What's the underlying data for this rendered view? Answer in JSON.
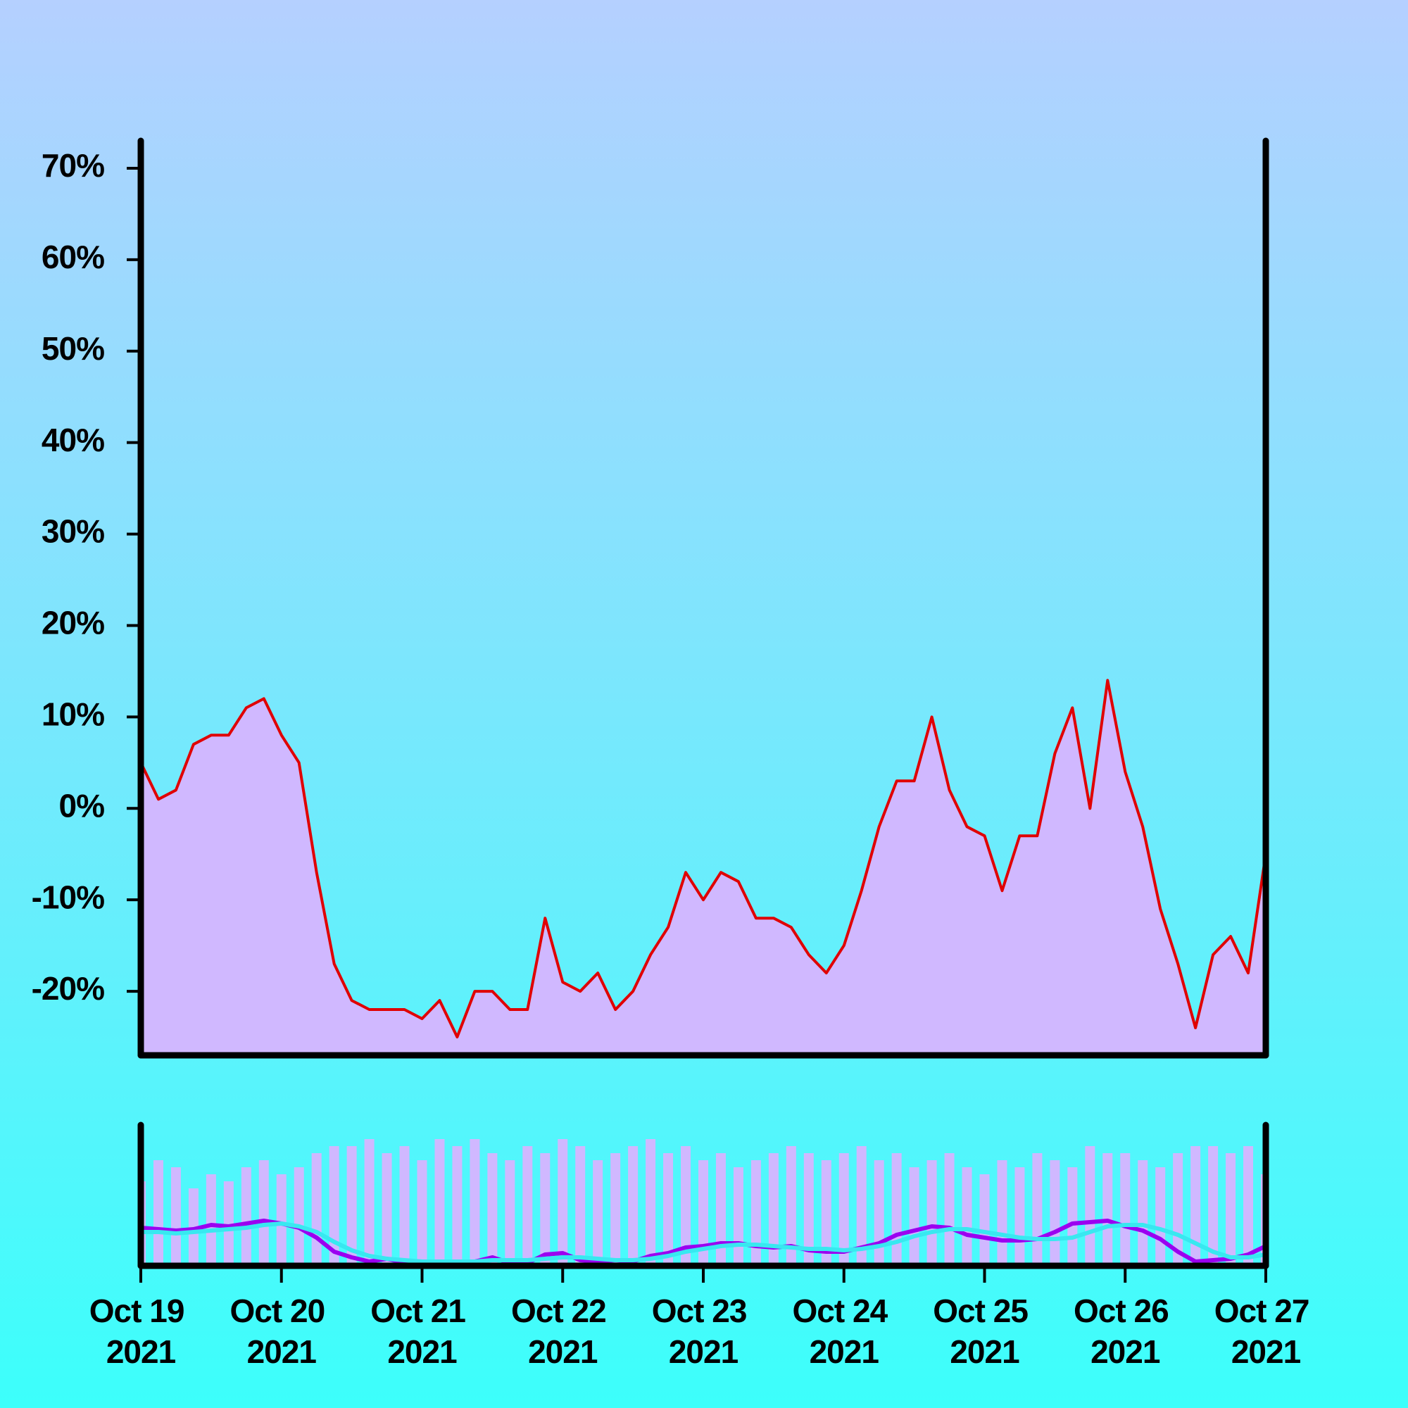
{
  "chart_data": [
    {
      "type": "area",
      "x": [
        0,
        0.125,
        0.25,
        0.375,
        0.5,
        0.625,
        0.75,
        0.875,
        1,
        1.125,
        1.25,
        1.375,
        1.5,
        1.625,
        1.75,
        1.875,
        2,
        2.125,
        2.25,
        2.375,
        2.5,
        2.625,
        2.75,
        2.875,
        3,
        3.125,
        3.25,
        3.375,
        3.5,
        3.625,
        3.75,
        3.875,
        4,
        4.125,
        4.25,
        4.375,
        4.5,
        4.625,
        4.75,
        4.875,
        5,
        5.125,
        5.25,
        5.375,
        5.5,
        5.625,
        5.75,
        5.875,
        6,
        6.125,
        6.25,
        6.375,
        6.5,
        6.625,
        6.75,
        6.875,
        7,
        7.125,
        7.25,
        7.375,
        7.5,
        7.625,
        7.75,
        7.875,
        8
      ],
      "xlim": [
        0,
        8
      ],
      "ylim": [
        -27,
        73
      ],
      "yticks": [
        {
          "value": -20,
          "label": "-20%"
        },
        {
          "value": -10,
          "label": "-10%"
        },
        {
          "value": 0,
          "label": "0%"
        },
        {
          "value": 10,
          "label": "10%"
        },
        {
          "value": 20,
          "label": "20%"
        },
        {
          "value": 30,
          "label": "30%"
        },
        {
          "value": 40,
          "label": "40%"
        },
        {
          "value": 50,
          "label": "50%"
        },
        {
          "value": 60,
          "label": "60%"
        },
        {
          "value": 70,
          "label": "70%"
        }
      ],
      "series": [
        {
          "color": "#e00000",
          "fill": "#d0b8ff",
          "values": [
            5,
            1,
            2,
            7,
            8,
            8,
            11,
            12,
            8,
            5,
            -7,
            -17,
            -21,
            -22,
            -22,
            -22,
            -23,
            -21,
            -25,
            -20,
            -20,
            -22,
            -22,
            -12,
            -19,
            -20,
            -18,
            -22,
            -20,
            -16,
            -13,
            -7,
            -10,
            -7,
            -8,
            -12,
            -12,
            -13,
            -16,
            -18,
            -15,
            -9,
            -2,
            3,
            3,
            10,
            2,
            -2,
            -3,
            -9,
            -3,
            -3,
            6,
            11,
            0,
            14,
            4,
            -2,
            -11,
            -17,
            -24,
            -16,
            -14,
            -18,
            -5
          ]
        }
      ]
    },
    {
      "type": "bar",
      "x": [
        0,
        0.125,
        0.25,
        0.375,
        0.5,
        0.625,
        0.75,
        0.875,
        1,
        1.125,
        1.25,
        1.375,
        1.5,
        1.625,
        1.75,
        1.875,
        2,
        2.125,
        2.25,
        2.375,
        2.5,
        2.625,
        2.75,
        2.875,
        3,
        3.125,
        3.25,
        3.375,
        3.5,
        3.625,
        3.75,
        3.875,
        4,
        4.125,
        4.25,
        4.375,
        4.5,
        4.625,
        4.75,
        4.875,
        5,
        5.125,
        5.25,
        5.375,
        5.5,
        5.625,
        5.75,
        5.875,
        6,
        6.125,
        6.25,
        6.375,
        6.5,
        6.625,
        6.75,
        6.875,
        7,
        7.125,
        7.25,
        7.375,
        7.5,
        7.625,
        7.75,
        7.875,
        8
      ],
      "xlim": [
        0,
        8
      ],
      "xticks": [
        {
          "value": 0,
          "label": "Oct 19 2021"
        },
        {
          "value": 1,
          "label": "Oct 20 2021"
        },
        {
          "value": 2,
          "label": "Oct 21 2021"
        },
        {
          "value": 3,
          "label": "Oct 22 2021"
        },
        {
          "value": 4,
          "label": "Oct 23 2021"
        },
        {
          "value": 5,
          "label": "Oct 24 2021"
        },
        {
          "value": 6,
          "label": "Oct 25 2021"
        },
        {
          "value": 7,
          "label": "Oct 26 2021"
        },
        {
          "value": 8,
          "label": "Oct 27 2021"
        }
      ],
      "ylim": [
        0,
        100
      ],
      "series": [
        {
          "type": "bar",
          "color": "#d0b8ff",
          "values": [
            60,
            75,
            70,
            55,
            65,
            60,
            70,
            75,
            65,
            70,
            80,
            85,
            85,
            90,
            80,
            85,
            75,
            90,
            85,
            90,
            80,
            75,
            85,
            80,
            90,
            85,
            75,
            80,
            85,
            90,
            80,
            85,
            75,
            80,
            70,
            75,
            80,
            85,
            80,
            75,
            80,
            85,
            75,
            80,
            70,
            75,
            80,
            70,
            65,
            75,
            70,
            80,
            75,
            70,
            85,
            80,
            80,
            75,
            70,
            80,
            85,
            85,
            80,
            85,
            65
          ]
        },
        {
          "type": "line",
          "color": "#9b00f0",
          "values": [
            27,
            26,
            25,
            26,
            29,
            28,
            30,
            32,
            30,
            27,
            20,
            10,
            6,
            3,
            5,
            2,
            3,
            2,
            1,
            3,
            6,
            2,
            2,
            8,
            9,
            4,
            3,
            4,
            3,
            7,
            9,
            13,
            14,
            16,
            16,
            14,
            13,
            14,
            11,
            10,
            10,
            13,
            16,
            22,
            25,
            28,
            27,
            22,
            20,
            18,
            18,
            19,
            24,
            30,
            31,
            32,
            28,
            25,
            19,
            10,
            3,
            4,
            5,
            8,
            14
          ]
        },
        {
          "type": "line",
          "color": "#38e8f0",
          "values": [
            24,
            24,
            23,
            24,
            25,
            26,
            27,
            29,
            30,
            28,
            24,
            17,
            11,
            7,
            5,
            4,
            3,
            3,
            3,
            3,
            4,
            4,
            4,
            5,
            6,
            6,
            5,
            4,
            4,
            5,
            7,
            10,
            12,
            14,
            15,
            15,
            14,
            13,
            12,
            12,
            11,
            12,
            14,
            17,
            21,
            24,
            26,
            26,
            24,
            22,
            20,
            19,
            19,
            20,
            24,
            28,
            29,
            29,
            26,
            22,
            16,
            10,
            6,
            6,
            8
          ]
        }
      ]
    }
  ]
}
